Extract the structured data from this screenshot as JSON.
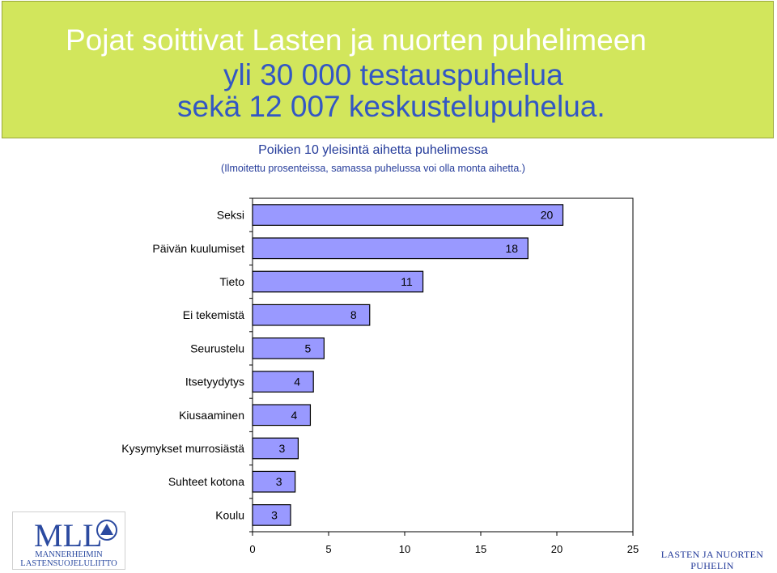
{
  "headline": {
    "line1": "Pojat soittivat Lasten ja nuorten puhelimeen",
    "line2": "yli 30 000 testauspuhelua",
    "line3": "sekä 12 007 keskustelupuhelua."
  },
  "chart_data": {
    "type": "bar",
    "orientation": "horizontal",
    "title": "Poikien 10 yleisintä aihetta puhelimessa",
    "subtitle": "(Ilmoitettu prosenteissa, samassa puhelussa voi olla monta aihetta.)",
    "categories": [
      "Seksi",
      "Päivän kuulumiset",
      "Tieto",
      "Ei tekemistä",
      "Seurustelu",
      "Itsetyydytys",
      "Kiusaaminen",
      "Kysymykset murrosiästä",
      "Suhteet kotona",
      "Koulu"
    ],
    "values": [
      20.4,
      18.1,
      11.2,
      7.7,
      4.7,
      4.0,
      3.8,
      3.0,
      2.8,
      2.5
    ],
    "value_labels": [
      "20",
      "18",
      "11",
      "8",
      "5",
      "4",
      "4",
      "3",
      "3",
      "3"
    ],
    "xlim": [
      0,
      25
    ],
    "xticks": [
      0,
      5,
      10,
      15,
      20,
      25
    ],
    "xtick_labels": [
      "0",
      "5",
      "10",
      "15",
      "20",
      "25"
    ],
    "grid": false,
    "colors": {
      "bar_fill": "#9999ff",
      "bar_stroke": "#000000"
    }
  },
  "logos": {
    "left": {
      "acronym": "MLL",
      "line1": "MANNERHEIMIN",
      "line2": "LASTENSUOJELULIITTO",
      "color": "#2b4aa0"
    },
    "right": {
      "line1": "LASTEN JA NUORTEN",
      "line2": "PUHELIN",
      "color": "#243b9a"
    }
  }
}
